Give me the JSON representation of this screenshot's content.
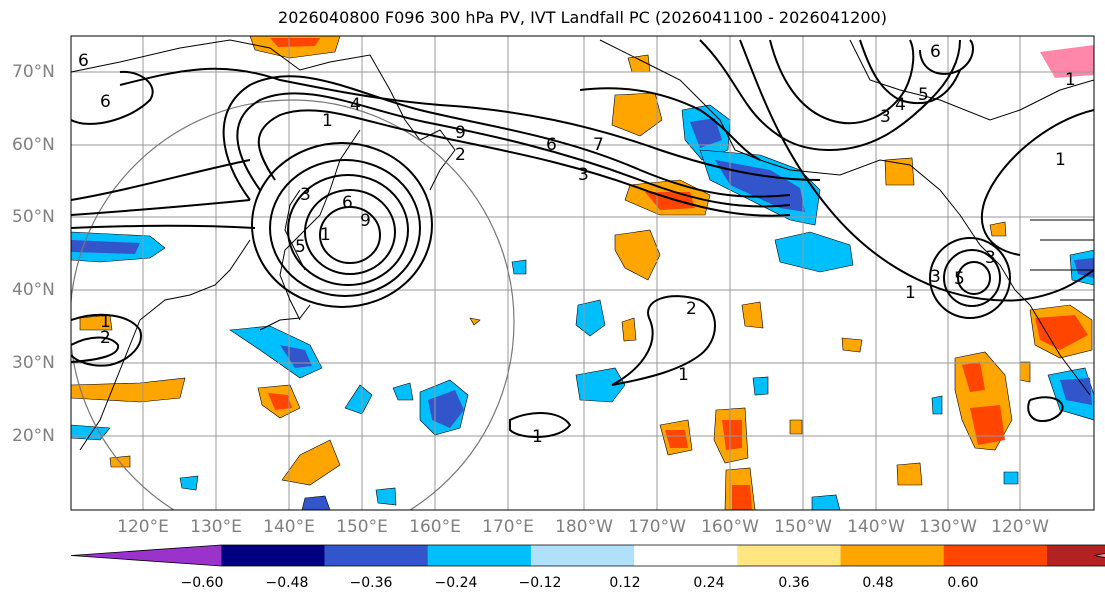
{
  "title": "2026040800 F096 300 hPa PV, IVT Landfall PC (2026041100 - 2026041200)",
  "lat_labels": [
    "70°N",
    "60°N",
    "50°N",
    "40°N",
    "30°N",
    "20°N"
  ],
  "lon_labels": [
    "120°E",
    "130°E",
    "140°E",
    "150°E",
    "160°E",
    "170°E",
    "180°W",
    "170°W",
    "160°W",
    "150°W",
    "140°W",
    "130°W",
    "120°W"
  ],
  "colorbar": {
    "colors": [
      "#9933cc",
      "#000080",
      "#3355cc",
      "#00bfff",
      "#b0e0fa",
      "#ffffff",
      "#ffe680",
      "#ffa500",
      "#ff4500",
      "#b22222",
      "#ff88aa"
    ],
    "tick_labels": [
      "−0.60",
      "−0.48",
      "−0.36",
      "−0.24",
      "−0.12",
      "0.12",
      "0.24",
      "0.36",
      "0.48",
      "0.60"
    ]
  },
  "contour_labels": [
    "6",
    "6",
    "1",
    "4",
    "9",
    "6",
    "7",
    "3",
    "2",
    "3",
    "6",
    "9",
    "5",
    "1",
    "2",
    "1",
    "2",
    "1",
    "1",
    "6",
    "4",
    "5",
    "3",
    "1",
    "3",
    "5",
    "1",
    "3",
    "1"
  ]
}
